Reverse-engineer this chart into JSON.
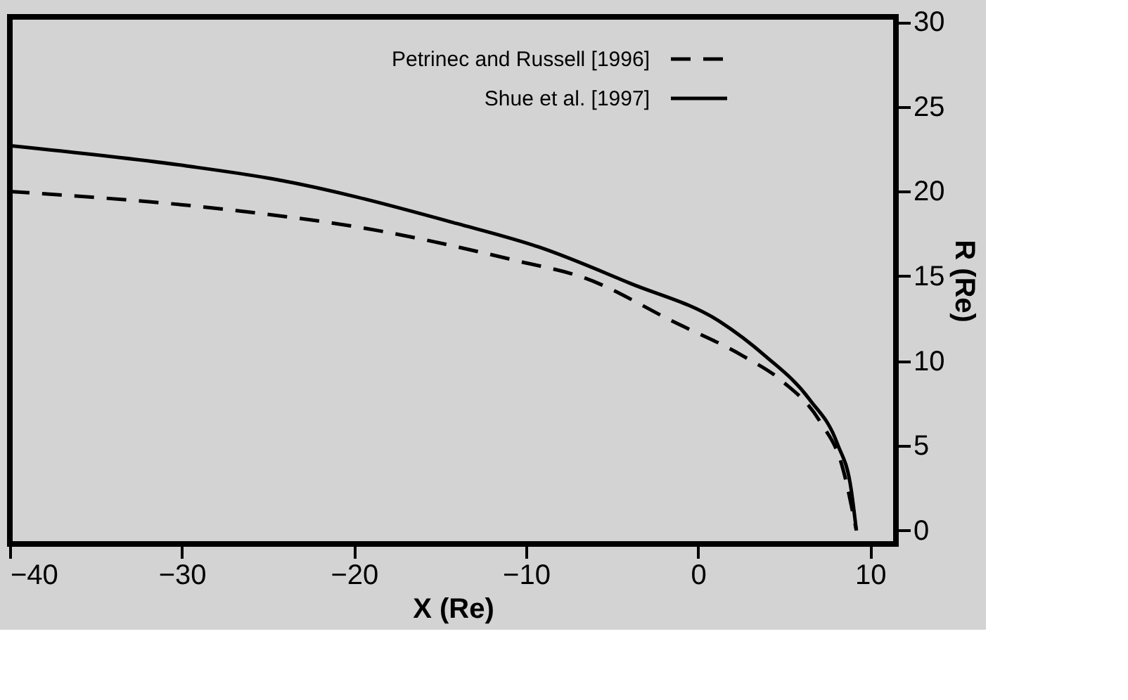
{
  "chart_data": {
    "type": "line",
    "xlabel": "X (Re)",
    "ylabel": "R (Re)",
    "xlim": [
      -40,
      11.5
    ],
    "xticks": [
      -40,
      -30,
      -20,
      -10,
      0,
      10
    ],
    "ylim": [
      -0.8,
      30.3
    ],
    "yticks": [
      0,
      5,
      10,
      15,
      20,
      25,
      30
    ],
    "grid": false,
    "legend": "top right",
    "marker": "none",
    "series": [
      {
        "name": "Petrinec and Russell [1996]",
        "color": "#000000",
        "line_style": "dashed",
        "x": [
          -40,
          -27.1,
          -19.2,
          -10.5,
          -6.6,
          -1.4,
          2.6,
          4.9,
          7.1,
          8.4,
          9.2
        ],
        "values": [
          20.0,
          18.9,
          17.8,
          15.9,
          14.9,
          12.3,
          10.3,
          8.8,
          6.4,
          3.7,
          0
        ]
      },
      {
        "name": "Shue et al. [1997]",
        "color": "#000000",
        "line_style": "solid",
        "x": [
          -40,
          -29.7,
          -24.5,
          -14,
          -9.2,
          -4.0,
          1.3,
          3.9,
          6.5,
          8.1,
          8.9,
          9.2
        ],
        "values": [
          22.7,
          21.5,
          20.7,
          18.1,
          16.7,
          14.6,
          12.3,
          10.3,
          7.7,
          5.1,
          2.4,
          0
        ]
      }
    ]
  }
}
